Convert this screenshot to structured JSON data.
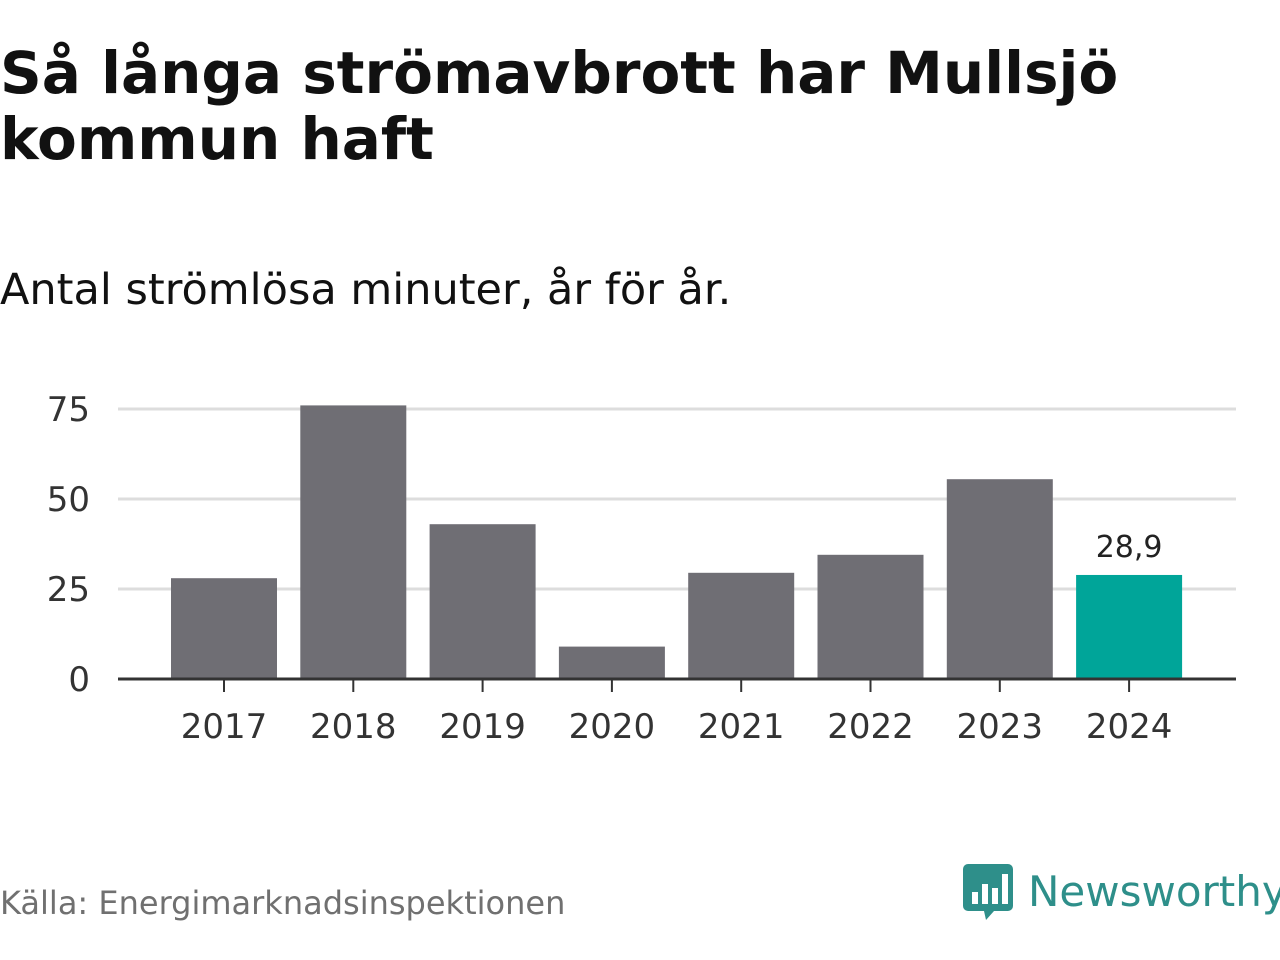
{
  "header": {
    "title": "Så långa strömavbrott har Mullsjö kommun haft",
    "subtitle": "Antal strömlösa minuter, år för år."
  },
  "chart_data": {
    "type": "bar",
    "categories": [
      "2017",
      "2018",
      "2019",
      "2020",
      "2021",
      "2022",
      "2023",
      "2024"
    ],
    "values": [
      28,
      76,
      43,
      9,
      29.5,
      34.5,
      55.5,
      28.9
    ],
    "highlight_label": "28,9",
    "highlight_index": 7,
    "yticks": [
      0,
      25,
      50,
      75
    ],
    "ylim": [
      0,
      80
    ],
    "xlabel": "",
    "ylabel": "",
    "grid": true,
    "colors": {
      "bar": "#6f6e74",
      "highlight": "#00a599",
      "grid": "#dddddd",
      "axis": "#333333"
    }
  },
  "footer": {
    "source": "Källa: Energimarknadsinspektionen",
    "brand": "Newsworthy",
    "brand_icon": "chart-bubble-icon",
    "brand_color": "#2e8f8a"
  }
}
